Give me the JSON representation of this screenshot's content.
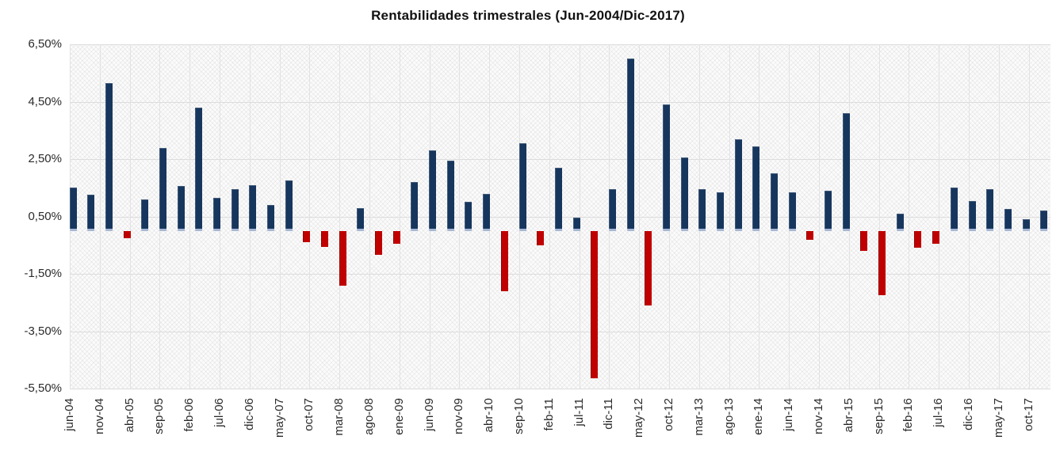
{
  "title": "Rentabilidades trimestrales (Jun-2004/Dic-2017)",
  "colors": {
    "positive_bar": "#17365D",
    "negative_bar": "#C00000",
    "bar_base_strip": "#A6B7D4",
    "gridline": "#DCDCDC",
    "axis_text": "#2B2B2B",
    "plot_background": "#FBFBFB"
  },
  "y_axis": {
    "tick_labels": [
      "6,50%",
      "4,50%",
      "2,50%",
      "0,50%",
      "-1,50%",
      "-3,50%",
      "-5,50%"
    ],
    "max": 6.5,
    "min": -5.5,
    "tick_step": 2
  },
  "x_axis": {
    "tick_labels": [
      "jun-04",
      "nov-04",
      "abr-05",
      "sep-05",
      "feb-06",
      "jul-06",
      "dic-06",
      "may-07",
      "oct-07",
      "mar-08",
      "ago-08",
      "ene-09",
      "jun-09",
      "nov-09",
      "abr-10",
      "sep-10",
      "feb-11",
      "jul-11",
      "dic-11",
      "may-12",
      "oct-12",
      "mar-13",
      "ago-13",
      "ene-14",
      "jun-14",
      "nov-14",
      "abr-15",
      "sep-15",
      "feb-16",
      "jul-16",
      "dic-16",
      "may-17",
      "oct-17"
    ],
    "months_between_ticks": 5
  },
  "chart_data": {
    "type": "bar",
    "title": "Rentabilidades trimestrales (Jun-2004/Dic-2017)",
    "unit": "%",
    "ylim": [
      -5.5,
      6.5
    ],
    "grid": true,
    "legend": "none",
    "categories": [
      "jun-04",
      "sep-04",
      "dic-04",
      "mar-05",
      "jun-05",
      "sep-05",
      "dic-05",
      "mar-06",
      "jun-06",
      "sep-06",
      "dic-06",
      "mar-07",
      "jun-07",
      "sep-07",
      "dic-07",
      "mar-08",
      "jun-08",
      "sep-08",
      "dic-08",
      "mar-09",
      "jun-09",
      "sep-09",
      "dic-09",
      "mar-10",
      "jun-10",
      "sep-10",
      "dic-10",
      "mar-11",
      "jun-11",
      "sep-11",
      "dic-11",
      "mar-12",
      "jun-12",
      "sep-12",
      "dic-12",
      "mar-13",
      "jun-13",
      "sep-13",
      "dic-13",
      "mar-14",
      "jun-14",
      "sep-14",
      "dic-14",
      "mar-15",
      "jun-15",
      "sep-15",
      "dic-15",
      "mar-16",
      "jun-16",
      "sep-16",
      "dic-16",
      "mar-17",
      "jun-17",
      "sep-17",
      "dic-17"
    ],
    "values": [
      1.5,
      1.25,
      5.15,
      -0.25,
      1.1,
      2.9,
      1.55,
      4.3,
      1.15,
      1.45,
      1.6,
      0.9,
      1.75,
      -0.4,
      -0.55,
      -1.9,
      0.8,
      -0.85,
      -0.45,
      1.7,
      2.8,
      2.45,
      1.0,
      1.3,
      -2.1,
      3.05,
      -0.5,
      2.2,
      0.45,
      -5.15,
      1.45,
      6.0,
      -2.6,
      4.4,
      2.55,
      1.45,
      1.35,
      3.2,
      2.95,
      2.0,
      1.35,
      -0.3,
      1.4,
      4.1,
      -0.7,
      -2.25,
      0.6,
      -0.6,
      -0.45,
      1.5,
      1.05,
      1.45,
      0.75,
      0.4,
      0.7
    ],
    "quarter_spacing_months": 3
  }
}
